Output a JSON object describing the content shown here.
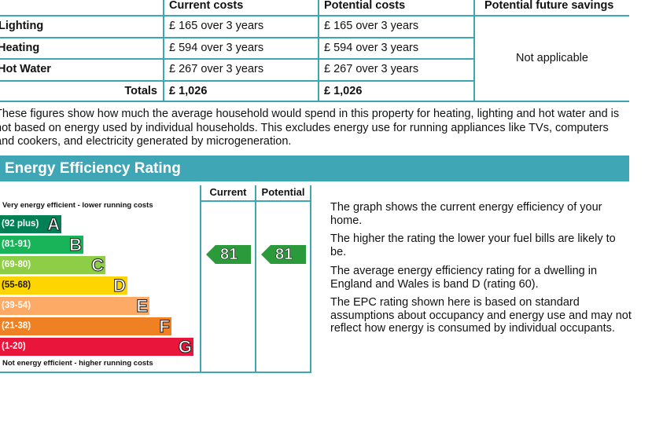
{
  "costs": {
    "headers": {
      "current": "Current costs",
      "potential": "Potential costs",
      "savings": "Potential future savings"
    },
    "rows": [
      {
        "label": "Lighting",
        "current": "£ 165 over 3 years",
        "potential": "£ 165 over 3 years"
      },
      {
        "label": "Heating",
        "current": "£ 594 over 3 years",
        "potential": "£ 594 over 3 years"
      },
      {
        "label": "Hot Water",
        "current": "£ 267 over 3 years",
        "potential": "£ 267 over 3 years"
      }
    ],
    "totals": {
      "label": "Totals",
      "current": "£ 1,026",
      "potential": "£ 1,026"
    },
    "savings_value": "Not applicable"
  },
  "note": "These figures show how much the average household would spend in this property for heating, lighting and hot water and is not based on energy used by individual households. This excludes energy use for running appliances like TVs, computers and cookers, and electricity generated by microgeneration.",
  "rating": {
    "title": "Energy Efficiency Rating",
    "col_current": "Current",
    "col_potential": "Potential",
    "top_caption": "Very energy efficient - lower running costs",
    "bottom_caption": "Not energy efficient - higher running costs",
    "bands": [
      {
        "range": "(92 plus)",
        "letter": "A",
        "color": "#008054"
      },
      {
        "range": "(81-91)",
        "letter": "B",
        "color": "#19b459"
      },
      {
        "range": "(69-80)",
        "letter": "C",
        "color": "#8dce46"
      },
      {
        "range": "(55-68)",
        "letter": "D",
        "color": "#ffd500"
      },
      {
        "range": "(39-54)",
        "letter": "E",
        "color": "#fcaa65"
      },
      {
        "range": "(21-38)",
        "letter": "F",
        "color": "#ef8023"
      },
      {
        "range": "(1-20)",
        "letter": "G",
        "color": "#e9153b"
      }
    ],
    "current_value": "81",
    "potential_value": "81",
    "arrow_color": "#2a9a3a",
    "descriptions": [
      "The graph shows the current energy efficiency of your home.",
      "The higher the rating the lower your fuel bills are likely to be.",
      "The average energy efficiency rating for a dwelling in England and Wales is band D (rating 60).",
      "The EPC rating shown here is based on standard assumptions about occupancy and energy use and may not reflect how energy is consumed by individual occupants."
    ]
  }
}
